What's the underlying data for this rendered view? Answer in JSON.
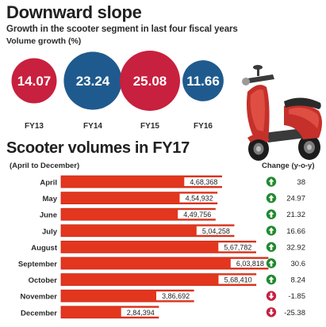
{
  "header": {
    "title": "Downward slope",
    "subtitle": "Growth in the scooter segment in last four fiscal years",
    "volume_label": "Volume growth (%)"
  },
  "section2": {
    "title": "Scooter volumes in FY17",
    "period": "(April to December)",
    "change_header": "Change (y-o-y)"
  },
  "colors": {
    "crimson": "#c8203f",
    "navy": "#1f5a8e",
    "bar": "#e2361e",
    "bar_edge": "#c92a14",
    "up": "#1f8a2d",
    "down": "#c8203f"
  },
  "chart_data": [
    {
      "type": "bubble",
      "categories": [
        "FY13",
        "FY14",
        "FY15",
        "FY16"
      ],
      "values": [
        14.07,
        23.24,
        25.08,
        11.66
      ],
      "colors": [
        "crimson",
        "navy",
        "crimson",
        "navy"
      ]
    },
    {
      "type": "bar",
      "orientation": "horizontal",
      "categories": [
        "April",
        "May",
        "June",
        "July",
        "August",
        "September",
        "October",
        "November",
        "December"
      ],
      "values": [
        468368,
        454932,
        449756,
        504258,
        567782,
        603818,
        568410,
        386692,
        284394
      ],
      "value_labels": [
        "4,68,368",
        "4,54,932",
        "4,49,756",
        "5,04,258",
        "5,67,782",
        "6,03,818",
        "5,68,410",
        "3,86,692",
        "2,84,394"
      ],
      "change": [
        "38",
        "24.97",
        "21.32",
        "16.66",
        "32.92",
        "30.6",
        "8.24",
        "-1.85",
        "-25.38"
      ],
      "change_direction": [
        "up",
        "up",
        "up",
        "up",
        "up",
        "up",
        "up",
        "down",
        "down"
      ],
      "xlim": [
        0,
        650000
      ]
    }
  ],
  "illustration": {
    "icon": "scooter-icon"
  }
}
